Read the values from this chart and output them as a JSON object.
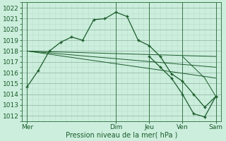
{
  "background_color": "#cceedd",
  "grid_color_major": "#99bbaa",
  "grid_color_minor": "#bbddcc",
  "line_color": "#1a5c2a",
  "xlabel": "Pression niveau de la mer( hPa )",
  "ylim": [
    1011.5,
    1022.5
  ],
  "yticks": [
    1012,
    1013,
    1014,
    1015,
    1016,
    1017,
    1018,
    1019,
    1020,
    1021,
    1022
  ],
  "x_day_labels": [
    "Mer",
    "Dim",
    "Jeu",
    "Ven",
    "Sam"
  ],
  "x_day_positions": [
    0,
    16,
    22,
    28,
    34
  ],
  "xlim": [
    -1,
    35
  ],
  "series1_x": [
    0,
    2,
    4,
    6,
    8,
    10,
    12,
    14,
    16,
    18,
    20,
    22,
    24,
    26,
    28,
    30,
    32,
    34
  ],
  "series1_y": [
    1014.7,
    1016.2,
    1018.0,
    1018.8,
    1019.3,
    1019.0,
    1020.9,
    1021.0,
    1021.6,
    1021.2,
    1019.0,
    1018.5,
    1017.5,
    1015.9,
    1015.2,
    1014.0,
    1012.8,
    1013.8
  ],
  "series2_x": [
    0,
    34
  ],
  "series2_y": [
    1018.0,
    1017.5
  ],
  "series3_x": [
    0,
    34
  ],
  "series3_y": [
    1018.0,
    1016.5
  ],
  "series4_x": [
    0,
    34
  ],
  "series4_y": [
    1018.0,
    1015.5
  ],
  "series5_x": [
    22,
    24,
    26,
    28,
    30,
    32,
    34
  ],
  "series5_y": [
    1017.5,
    1016.5,
    1015.5,
    1014.0,
    1012.2,
    1011.9,
    1013.8
  ],
  "series6_x": [
    28,
    30,
    32,
    34
  ],
  "series6_y": [
    1017.5,
    1016.5,
    1015.5,
    1013.8
  ]
}
